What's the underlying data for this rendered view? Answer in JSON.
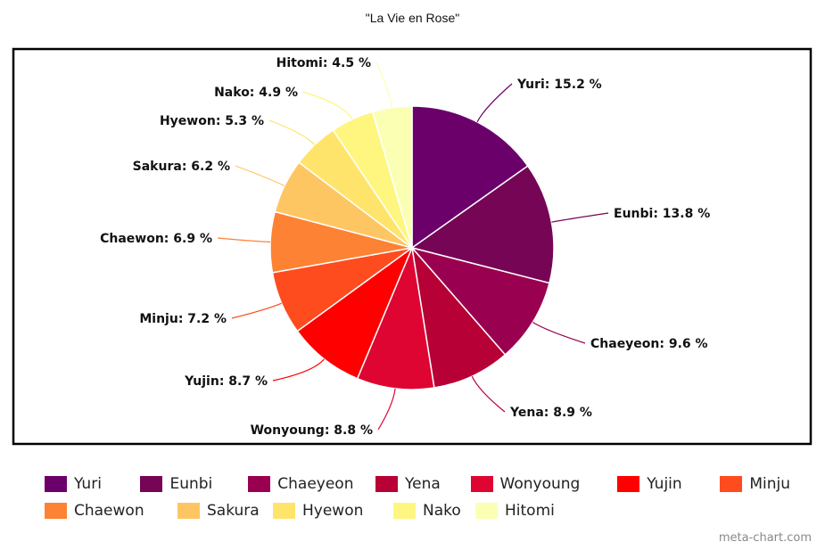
{
  "chart_data": {
    "type": "pie",
    "title": "\"La Vie en Rose\"",
    "slices": [
      {
        "name": "Yuri",
        "value": 15.2,
        "label": "Yuri: 15.2 %",
        "color": "#6b006b"
      },
      {
        "name": "Eunbi",
        "value": 13.8,
        "label": "Eunbi: 13.8 %",
        "color": "#760556"
      },
      {
        "name": "Chaeyeon",
        "value": 9.6,
        "label": "Chaeyeon: 9.6 %",
        "color": "#9a0050"
      },
      {
        "name": "Yena",
        "value": 8.9,
        "label": "Yena: 8.9 %",
        "color": "#b70035"
      },
      {
        "name": "Wonyoung",
        "value": 8.8,
        "label": "Wonyoung: 8.8 %",
        "color": "#de0533"
      },
      {
        "name": "Yujin",
        "value": 8.7,
        "label": "Yujin: 8.7 %",
        "color": "#ff0000"
      },
      {
        "name": "Minju",
        "value": 7.2,
        "label": "Minju: 7.2 %",
        "color": "#fe4c1e"
      },
      {
        "name": "Chaewon",
        "value": 6.9,
        "label": "Chaewon: 6.9 %",
        "color": "#fd8233"
      },
      {
        "name": "Sakura",
        "value": 6.2,
        "label": "Sakura: 6.2 %",
        "color": "#fec663"
      },
      {
        "name": "Hyewon",
        "value": 5.3,
        "label": "Hyewon: 5.3 %",
        "color": "#fee46b"
      },
      {
        "name": "Nako",
        "value": 4.9,
        "label": "Nako: 4.9 %",
        "color": "#fef67e"
      },
      {
        "name": "Hitomi",
        "value": 4.5,
        "label": "Hitomi: 4.5 %",
        "color": "#fbffb4"
      }
    ],
    "legend_position": "bottom"
  },
  "credit": "meta-chart.com"
}
